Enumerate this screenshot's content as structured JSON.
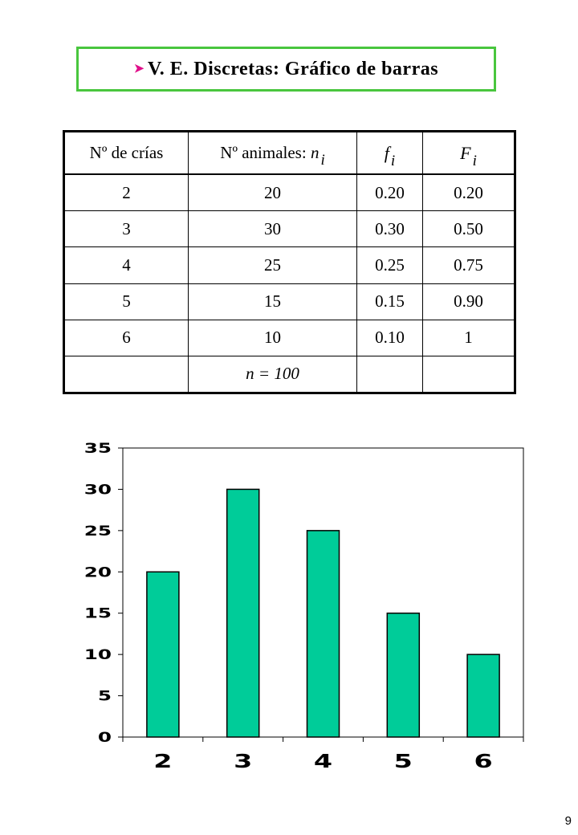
{
  "title": {
    "bullet": "➤",
    "text": "V. E. Discretas: Gráfico de barras"
  },
  "table": {
    "headers": {
      "col1": "Nº de crías",
      "col2_prefix": "Nº animales: ",
      "col2_var": "n",
      "col2_sub": "i",
      "col3_var": "f",
      "col3_sub": "i",
      "col4_var": "F",
      "col4_sub": "i"
    },
    "rows": [
      [
        "2",
        "20",
        "0.20",
        "0.20"
      ],
      [
        "3",
        "30",
        "0.30",
        "0.50"
      ],
      [
        "4",
        "25",
        "0.25",
        "0.75"
      ],
      [
        "5",
        "15",
        "0.15",
        "0.90"
      ],
      [
        "6",
        "10",
        "0.10",
        "1"
      ]
    ],
    "total": "n = 100"
  },
  "chart_data": {
    "type": "bar",
    "categories": [
      "2",
      "3",
      "4",
      "5",
      "6"
    ],
    "values": [
      20,
      30,
      25,
      15,
      10
    ],
    "ylim": [
      0,
      35
    ],
    "yticks": [
      "0",
      "5",
      "10",
      "15",
      "20",
      "25",
      "30",
      "35"
    ],
    "bar_color": "#00cc99",
    "grid": false,
    "legend": "none"
  },
  "page_number": "9"
}
